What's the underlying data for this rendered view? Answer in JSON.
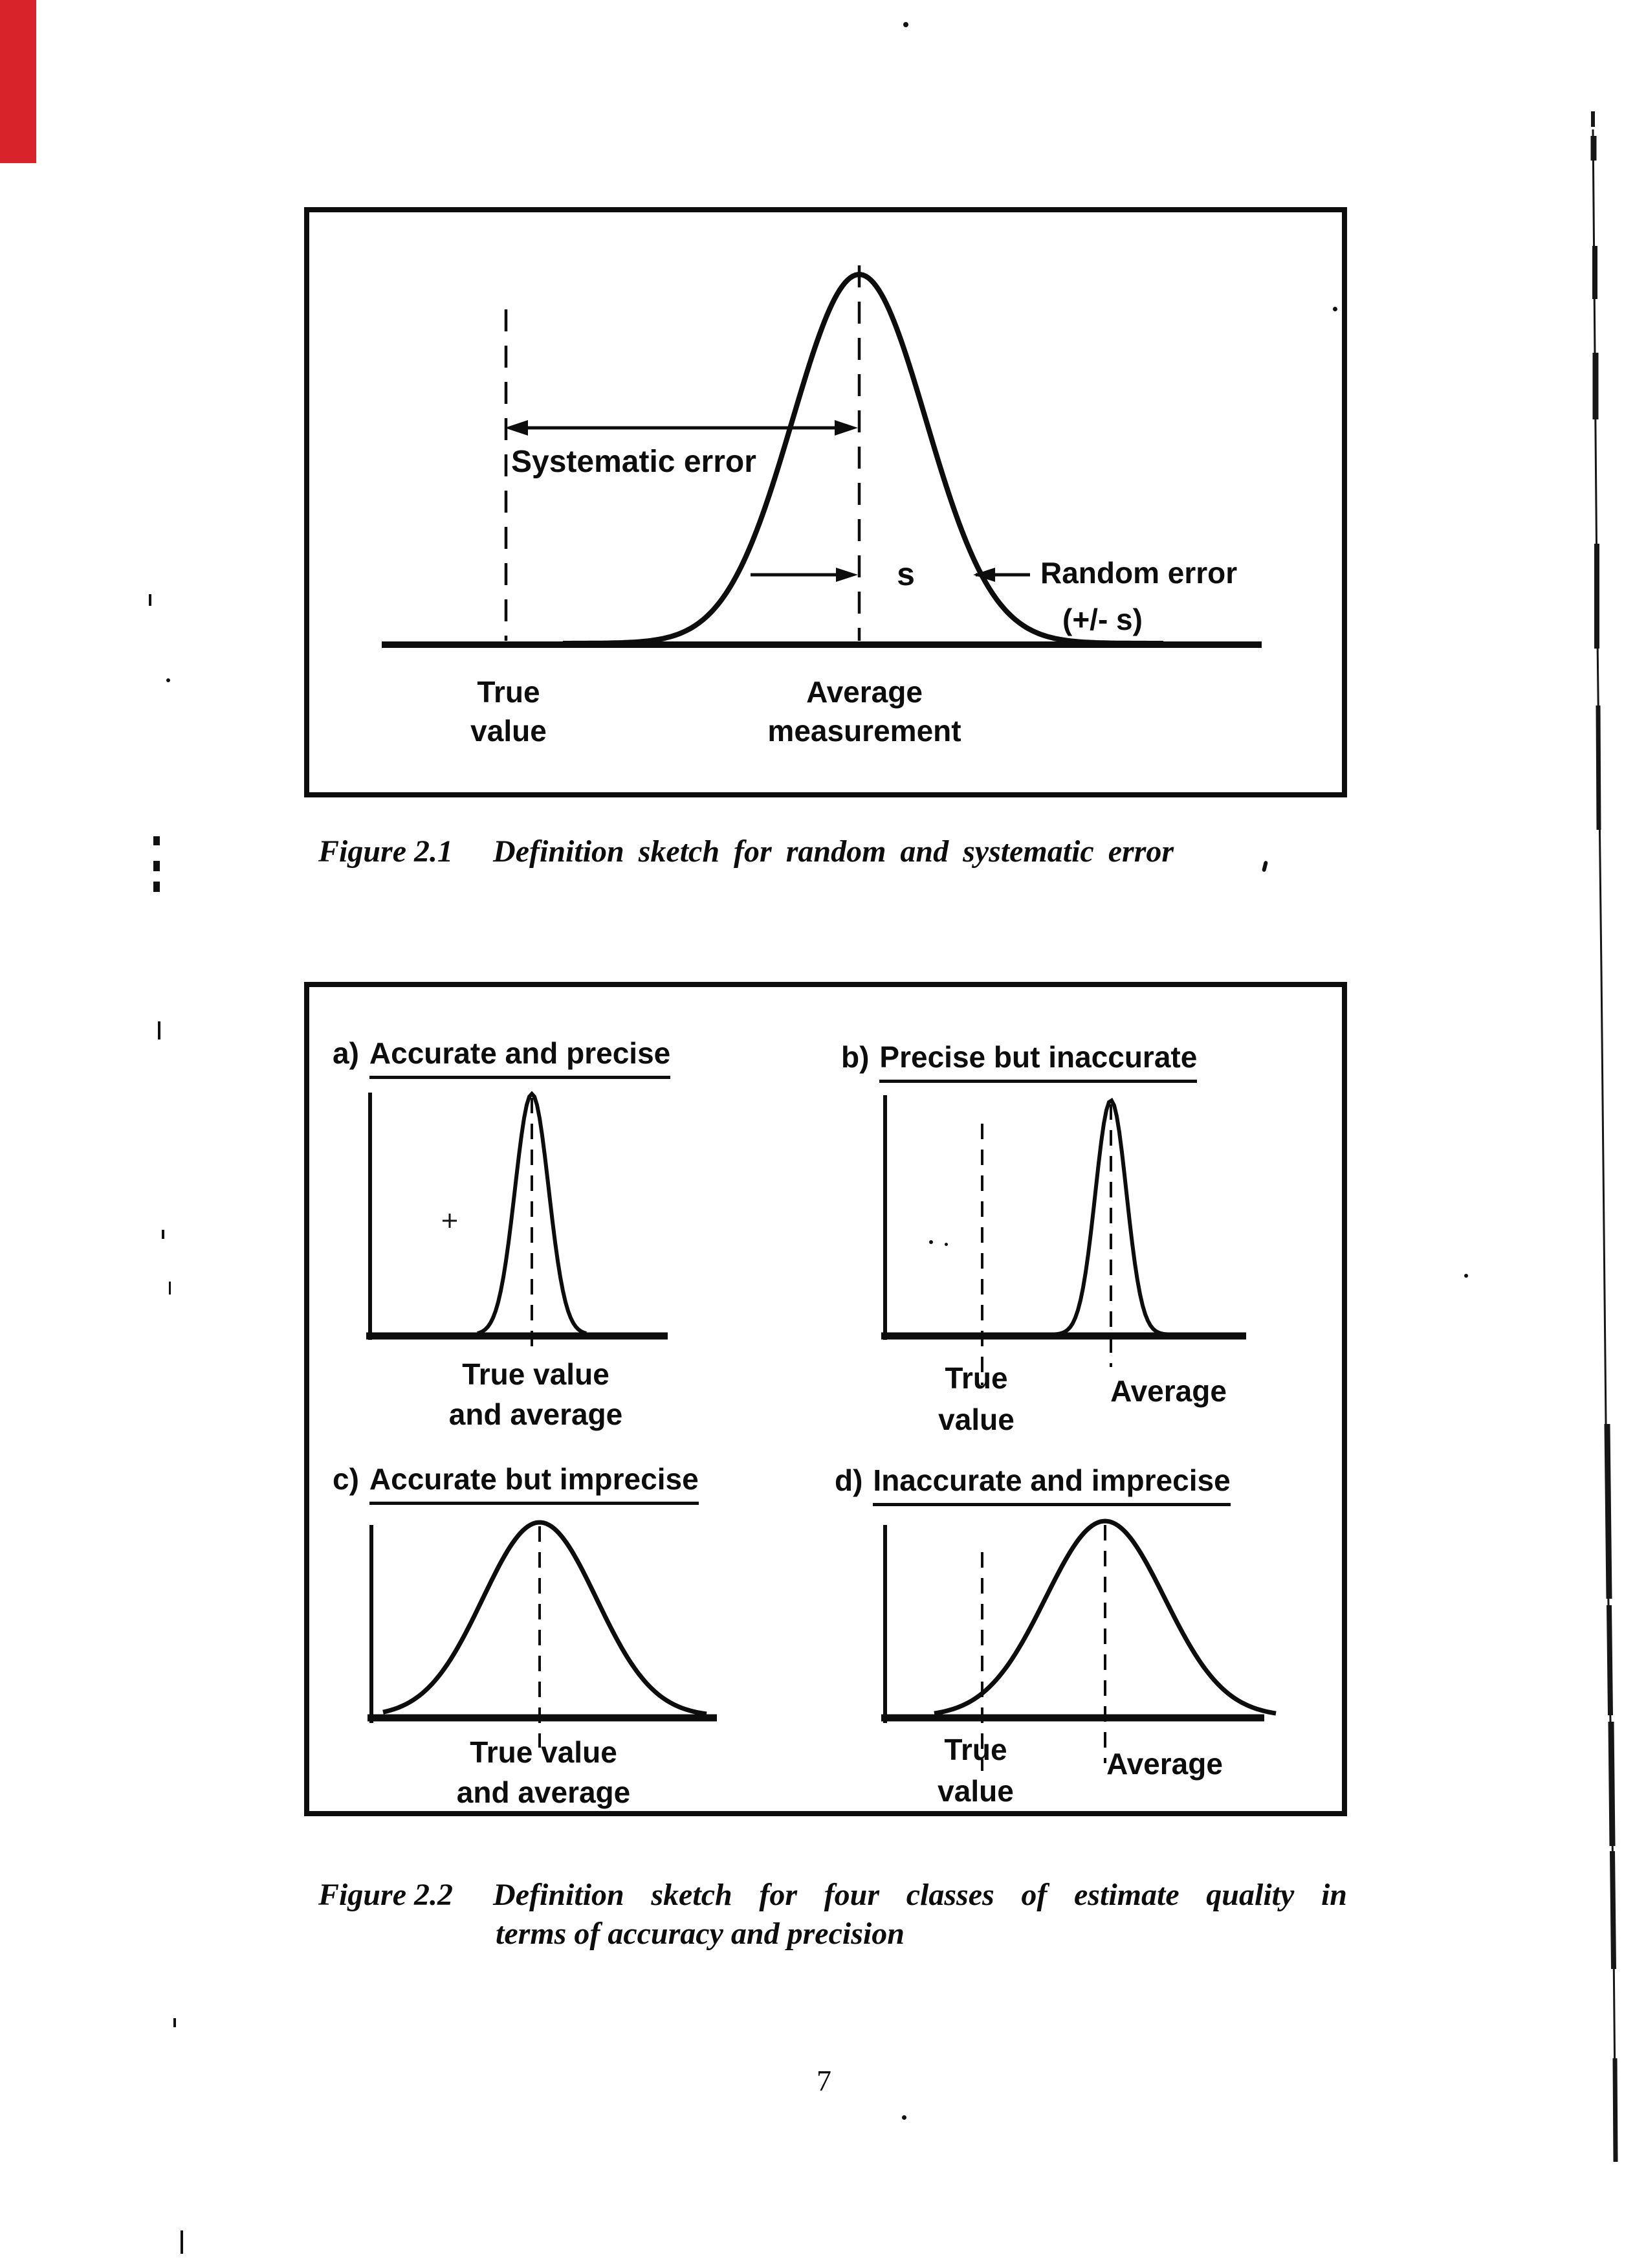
{
  "artifacts": {
    "stripe_color": "#d8232a"
  },
  "figure1": {
    "annotations": {
      "systematic_error": "Systematic error",
      "s": "s",
      "random_error": "Random error",
      "random_error_range": "(+/- s)"
    },
    "x_labels": {
      "true_line1": "True",
      "true_line2": "value",
      "avg_line1": "Average",
      "avg_line2": "measurement"
    },
    "caption": {
      "label": "Figure 2.1",
      "text": "Definition sketch for random and systematic error"
    }
  },
  "figure2": {
    "panels": [
      {
        "prefix": "a)",
        "title": "Accurate and precise",
        "label_line1": "True value",
        "label_line2": "and average"
      },
      {
        "prefix": "b)",
        "title": "Precise but inaccurate",
        "true_line1": "True",
        "true_line2": "value",
        "avg": "Average"
      },
      {
        "prefix": "c)",
        "title": "Accurate but imprecise",
        "label_line1": "True value",
        "label_line2": "and average"
      },
      {
        "prefix": "d)",
        "title": "Inaccurate and imprecise",
        "true_line1": "True",
        "true_line2": "value",
        "avg": "Average"
      }
    ],
    "caption": {
      "label": "Figure 2.2",
      "line1": "Definition sketch for four classes of estimate quality in",
      "line2": "terms of accuracy and precision"
    }
  },
  "page": {
    "number": "7"
  }
}
